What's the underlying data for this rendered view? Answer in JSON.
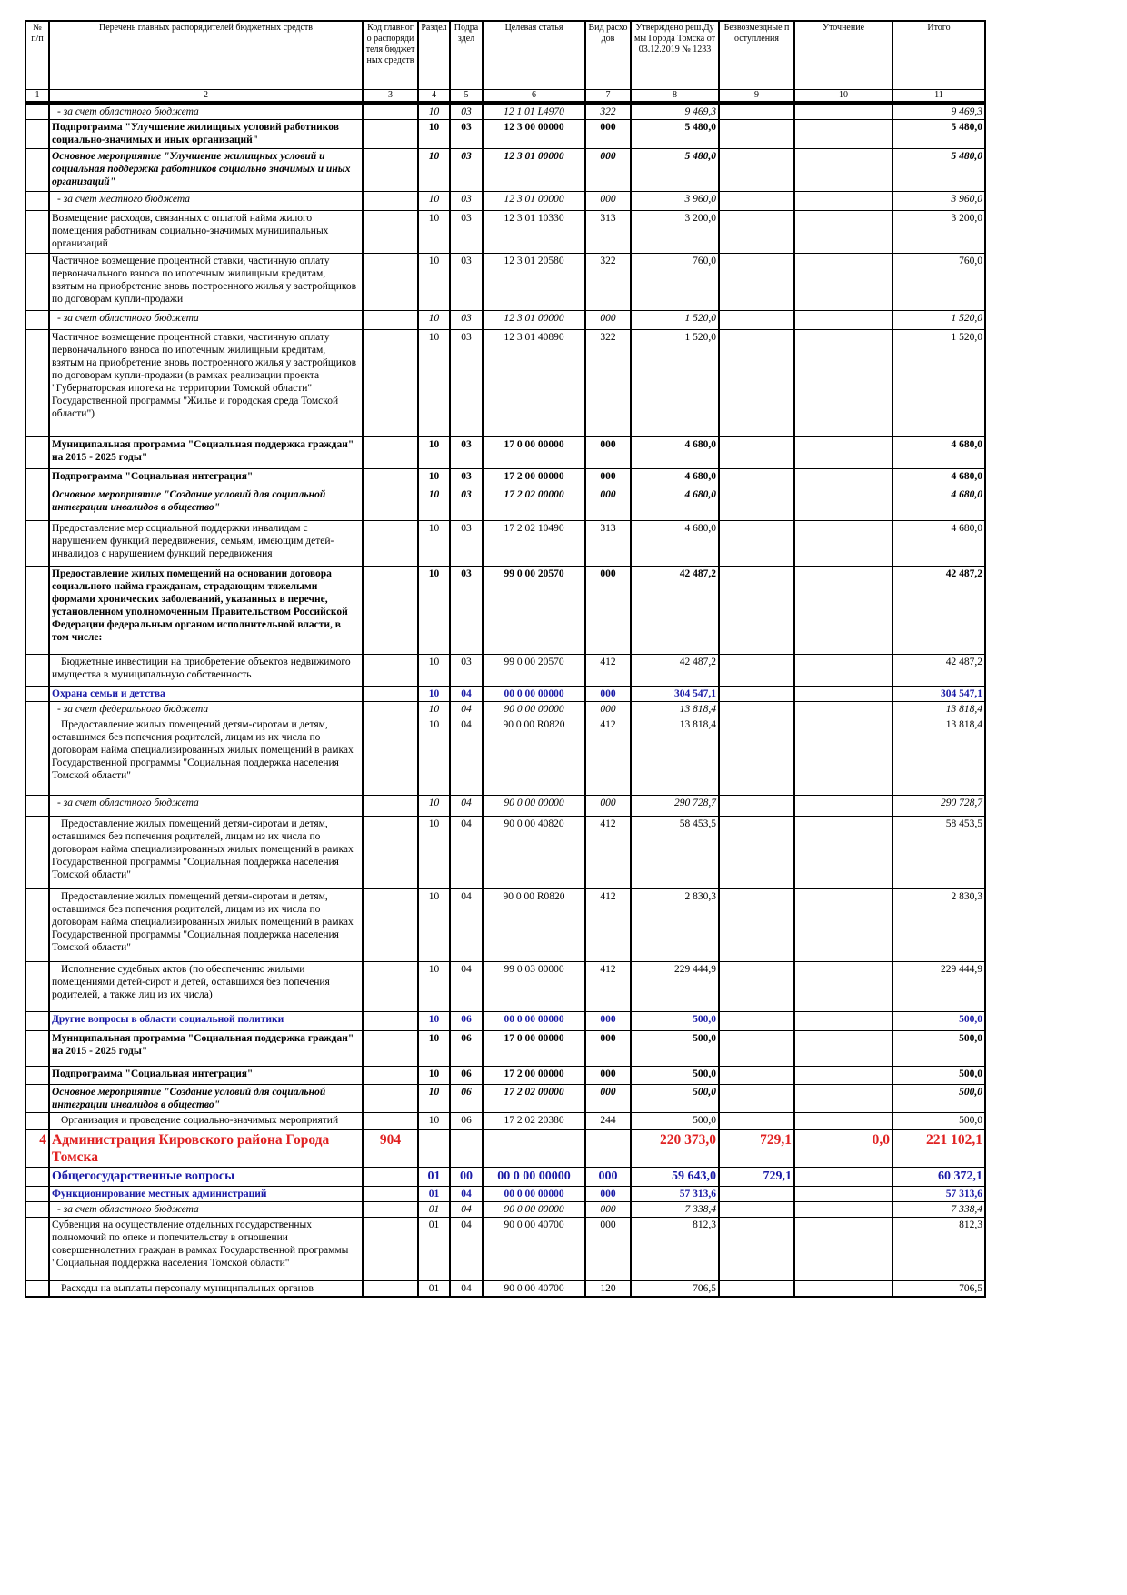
{
  "header": {
    "num": "№ п/п",
    "name": "Перечень главных распорядителей бюджетных средств",
    "code": "Код главного распорядителя бюджетных средств",
    "section": "Раздел",
    "subsection": "Подраздел",
    "target": "Целевая статья",
    "kind": "Вид расходов",
    "approved": "Утверждено реш.Думы Города Томска от 03.12.2019 № 1233",
    "grants": "Безвозмездные поступления",
    "adjust": "Уточнение",
    "total": "Итого"
  },
  "column_numbers": [
    1,
    2,
    3,
    4,
    5,
    6,
    7,
    8,
    9,
    10,
    11
  ],
  "rows": [
    {
      "name": "- за счет областного бюджета",
      "section": "10",
      "subsection": "03",
      "target": "12 1 01 L4970",
      "kind": "322",
      "approved": "9 469,3",
      "total": "9 469,3"
    },
    {
      "name": "Подпрограмма \"Улучшение жилищных условий работников социально-значимых и иных организаций\"",
      "section": "10",
      "subsection": "03",
      "target": "12 3 00 00000",
      "kind": "000",
      "approved": "5 480,0",
      "total": "5 480,0"
    },
    {
      "name": "Основное мероприятие \"Улучшение жилищных условий и социальная поддержка работников социально значимых и иных организаций\"",
      "section": "10",
      "subsection": "03",
      "target": "12 3 01 00000",
      "kind": "000",
      "approved": "5 480,0",
      "total": "5 480,0"
    },
    {
      "name": "- за счет местного бюджета",
      "section": "10",
      "subsection": "03",
      "target": "12 3 01 00000",
      "kind": "000",
      "approved": "3 960,0",
      "total": "3 960,0"
    },
    {
      "name": "Возмещение расходов, связанных с оплатой найма жилого помещения работникам социально-значимых муниципальных организаций",
      "section": "10",
      "subsection": "03",
      "target": "12 3 01 10330",
      "kind": "313",
      "approved": "3 200,0",
      "total": "3 200,0"
    },
    {
      "name": "Частичное возмещение процентной ставки, частичную оплату первоначального взноса по ипотечным жилищным кредитам, взятым на приобретение вновь построенного жилья у застройщиков по договорам купли-продажи",
      "section": "10",
      "subsection": "03",
      "target": "12 3 01 20580",
      "kind": "322",
      "approved": "760,0",
      "total": "760,0"
    },
    {
      "name": "- за счет областного бюджета",
      "section": "10",
      "subsection": "03",
      "target": "12 3 01 00000",
      "kind": "000",
      "approved": "1 520,0",
      "total": "1 520,0"
    },
    {
      "name": "Частичное возмещение процентной ставки, частичную оплату первоначального взноса по ипотечным жилищным кредитам, взятым на приобретение вновь построенного жилья у застройщиков по договорам купли-продажи (в рамках реализации проекта \"Губернаторская ипотека на территории Томской области\" Государственной программы \"Жилье и городская среда Томской области\")",
      "section": "10",
      "subsection": "03",
      "target": "12 3 01 40890",
      "kind": "322",
      "approved": "1 520,0",
      "total": "1 520,0"
    },
    {
      "name": "Муниципальная программа \"Социальная поддержка граждан\" на 2015 - 2025 годы\"",
      "section": "10",
      "subsection": "03",
      "target": "17 0 00 00000",
      "kind": "000",
      "approved": "4 680,0",
      "total": "4 680,0"
    },
    {
      "name": "Подпрограмма \"Социальная интеграция\"",
      "section": "10",
      "subsection": "03",
      "target": "17 2 00 00000",
      "kind": "000",
      "approved": "4 680,0",
      "total": "4 680,0"
    },
    {
      "name": "Основное мероприятие \"Создание условий для социальной интеграции инвалидов в общество\"",
      "section": "10",
      "subsection": "03",
      "target": "17 2 02 00000",
      "kind": "000",
      "approved": "4 680,0",
      "total": "4 680,0"
    },
    {
      "name": "Предоставление мер социальной поддержки инвалидам с нарушением функций передвижения, семьям, имеющим детей-инвалидов с нарушением функций передвижения",
      "section": "10",
      "subsection": "03",
      "target": "17 2 02 10490",
      "kind": "313",
      "approved": "4 680,0",
      "total": "4 680,0"
    },
    {
      "name": "Предоставление жилых помещений на основании договора социального найма гражданам, страдающим тяжелыми формами хронических заболеваний, указанных в перечне, установленном уполномоченным Правительством Российской Федерации федеральным органом исполнительной власти, в том числе:",
      "section": "10",
      "subsection": "03",
      "target": "99 0 00 20570",
      "kind": "000",
      "approved": "42 487,2",
      "total": "42 487,2"
    },
    {
      "name": "Бюджетные инвестиции на приобретение объектов недвижимого имущества в муниципальную собственность",
      "section": "10",
      "subsection": "03",
      "target": "99 0 00 20570",
      "kind": "412",
      "approved": "42 487,2",
      "total": "42 487,2"
    },
    {
      "name": "Охрана семьи и детства",
      "section": "10",
      "subsection": "04",
      "target": "00 0 00 00000",
      "kind": "000",
      "approved": "304 547,1",
      "total": "304 547,1"
    },
    {
      "name": "- за счет федерального бюджета",
      "section": "10",
      "subsection": "04",
      "target": "90 0 00 00000",
      "kind": "000",
      "approved": "13 818,4",
      "total": "13 818,4"
    },
    {
      "name": "Предоставление жилых помещений детям-сиротам и детям, оставшимся без попечения родителей, лицам из их числа по договорам найма специализированных жилых помещений в рамках Государственной программы \"Социальная поддержка населения Томской области\"",
      "section": "10",
      "subsection": "04",
      "target": "90 0 00 R0820",
      "kind": "412",
      "approved": "13 818,4",
      "total": "13 818,4"
    },
    {
      "name": "- за счет областного бюджета",
      "section": "10",
      "subsection": "04",
      "target": "90 0 00 00000",
      "kind": "000",
      "approved": "290 728,7",
      "total": "290 728,7"
    },
    {
      "name": "Предоставление жилых помещений детям-сиротам и детям, оставшимся без попечения родителей, лицам из их числа по договорам найма специализированных жилых помещений в рамках Государственной программы \"Социальная поддержка населения Томской области\"",
      "section": "10",
      "subsection": "04",
      "target": "90 0 00 40820",
      "kind": "412",
      "approved": "58 453,5",
      "total": "58 453,5"
    },
    {
      "name": "Предоставление жилых помещений детям-сиротам и детям, оставшимся без попечения родителей, лицам из их числа по договорам найма специализированных жилых помещений в рамках Государственной программы \"Социальная поддержка населения Томской области\"",
      "section": "10",
      "subsection": "04",
      "target": "90 0 00 R0820",
      "kind": "412",
      "approved": "2 830,3",
      "total": "2 830,3"
    },
    {
      "name": "Исполнение судебных актов (по обеспечению жилыми помещениями детей-сирот и детей, оставшихся без попечения родителей, а также лиц из их числа)",
      "section": "10",
      "subsection": "04",
      "target": "99 0 03 00000",
      "kind": "412",
      "approved": "229 444,9",
      "total": "229 444,9"
    },
    {
      "name": "Другие вопросы в области социальной политики",
      "section": "10",
      "subsection": "06",
      "target": "00 0 00 00000",
      "kind": "000",
      "approved": "500,0",
      "total": "500,0"
    },
    {
      "name": "Муниципальная программа \"Социальная поддержка граждан\" на 2015 - 2025 годы\"",
      "section": "10",
      "subsection": "06",
      "target": "17 0 00 00000",
      "kind": "000",
      "approved": "500,0",
      "total": "500,0"
    },
    {
      "name": "Подпрограмма \"Социальная интеграция\"",
      "section": "10",
      "subsection": "06",
      "target": "17 2 00 00000",
      "kind": "000",
      "approved": "500,0",
      "total": "500,0"
    },
    {
      "name": "Основное мероприятие \"Создание условий для социальной интеграции инвалидов в общество\"",
      "section": "10",
      "subsection": "06",
      "target": "17 2 02 00000",
      "kind": "000",
      "approved": "500,0",
      "total": "500,0"
    },
    {
      "name": "Организация и проведение социально-значимых мероприятий",
      "section": "10",
      "subsection": "06",
      "target": "17 2 02 20380",
      "kind": "244",
      "approved": "500,0",
      "total": "500,0"
    },
    {
      "num": "4",
      "name": "Администрация Кировского района Города Томска",
      "code": "904",
      "approved": "220 373,0",
      "grants": "729,1",
      "adjust": "0,0",
      "total": "221 102,1"
    },
    {
      "name": "Общегосударственные вопросы",
      "section": "01",
      "subsection": "00",
      "target": "00 0 00 00000",
      "kind": "000",
      "approved": "59 643,0",
      "grants": "729,1",
      "total": "60 372,1"
    },
    {
      "name": "Функционирование местных администраций",
      "section": "01",
      "subsection": "04",
      "target": "00 0 00 00000",
      "kind": "000",
      "approved": "57 313,6",
      "total": "57 313,6"
    },
    {
      "name": "- за счет областного бюджета",
      "section": "01",
      "subsection": "04",
      "target": "90 0 00 00000",
      "kind": "000",
      "approved": "7 338,4",
      "total": "7 338,4"
    },
    {
      "name": "Субвенция на осуществление отдельных государственных полномочий по опеке и попечительству в отношении совершеннолетних граждан в рамках Государственной программы \"Социальная поддержка населения Томской области\"",
      "section": "01",
      "subsection": "04",
      "target": "90 0 00 40700",
      "kind": "000",
      "approved": "812,3",
      "total": "812,3"
    },
    {
      "name": "Расходы на выплаты персоналу муниципальных органов",
      "section": "01",
      "subsection": "04",
      "target": "90 0 00 40700",
      "kind": "120",
      "approved": "706,5",
      "total": "706,5"
    }
  ]
}
